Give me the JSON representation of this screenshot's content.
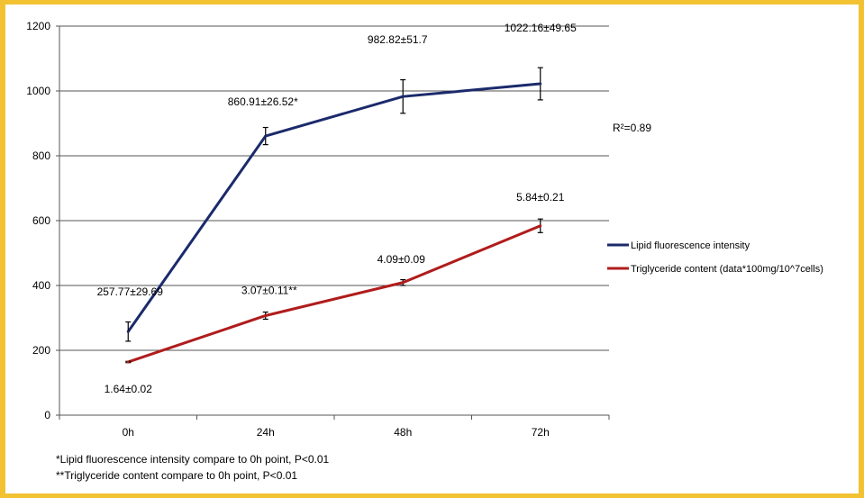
{
  "chart_data": {
    "type": "line",
    "categories": [
      "0h",
      "24h",
      "48h",
      "72h"
    ],
    "ylim": [
      0,
      1200
    ],
    "yticks": [
      0,
      200,
      400,
      600,
      800,
      1000,
      1200
    ],
    "grid": "horizontal",
    "legend_placement": "right",
    "series": [
      {
        "name": "Lipid fluorescence intensity",
        "color": "#1b2a6b",
        "values": [
          257.77,
          860.91,
          982.82,
          1022.16
        ],
        "errors": [
          29.69,
          26.52,
          51.7,
          49.65
        ],
        "labels": [
          "257.77±29.69",
          "860.91±26.52*",
          "982.82±51.7",
          "1022.16±49.65"
        ]
      },
      {
        "name": "Triglyceride content (data*100mg/10^7cells)",
        "color": "#b01c1c",
        "values": [
          164,
          307,
          409,
          584
        ],
        "errors": [
          2,
          11,
          9,
          21
        ],
        "labels": [
          "1.64±0.02",
          "3.07±0.11**",
          "4.09±0.09",
          "5.84±0.21"
        ]
      }
    ],
    "annotations": {
      "r_squared": "R²=0.89",
      "footnotes": [
        "*Lipid fluorescence intensity compare to 0h point, P<0.01",
        "**Triglyceride content compare to 0h point, P<0.01"
      ]
    }
  }
}
